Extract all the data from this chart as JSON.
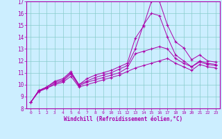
{
  "xlabel": "Windchill (Refroidissement éolien,°C)",
  "bg_color": "#b0e8e8",
  "plot_bg_color": "#cceeff",
  "line_color": "#aa00aa",
  "grid_color": "#88cccc",
  "spine_color": "#aa00aa",
  "xlim": [
    -0.5,
    23.5
  ],
  "ylim": [
    8,
    17
  ],
  "xticks": [
    0,
    1,
    2,
    3,
    4,
    5,
    6,
    7,
    8,
    9,
    10,
    11,
    12,
    13,
    14,
    15,
    16,
    17,
    18,
    19,
    20,
    21,
    22,
    23
  ],
  "yticks": [
    8,
    9,
    10,
    11,
    12,
    13,
    14,
    15,
    16,
    17
  ],
  "lines": [
    [
      8.5,
      9.5,
      9.8,
      10.3,
      10.5,
      11.1,
      10.0,
      10.5,
      10.8,
      11.0,
      11.2,
      11.5,
      11.8,
      13.9,
      14.9,
      17.0,
      17.0,
      15.0,
      13.6,
      13.1,
      12.1,
      12.5,
      12.0,
      11.9
    ],
    [
      8.5,
      9.5,
      9.8,
      10.2,
      10.4,
      11.0,
      10.0,
      10.3,
      10.6,
      10.8,
      11.0,
      11.3,
      11.6,
      13.0,
      15.0,
      16.0,
      15.8,
      14.0,
      12.5,
      12.0,
      11.5,
      12.0,
      11.8,
      11.7
    ],
    [
      8.5,
      9.5,
      9.7,
      10.1,
      10.3,
      10.9,
      9.9,
      10.2,
      10.4,
      10.6,
      10.8,
      11.0,
      11.4,
      12.6,
      12.8,
      13.0,
      13.2,
      13.0,
      12.2,
      11.8,
      11.5,
      11.9,
      11.7,
      11.6
    ],
    [
      8.5,
      9.4,
      9.7,
      10.0,
      10.2,
      10.7,
      9.8,
      10.0,
      10.2,
      10.4,
      10.6,
      10.8,
      11.1,
      11.4,
      11.6,
      11.8,
      12.0,
      12.2,
      11.8,
      11.5,
      11.2,
      11.7,
      11.5,
      11.4
    ]
  ]
}
